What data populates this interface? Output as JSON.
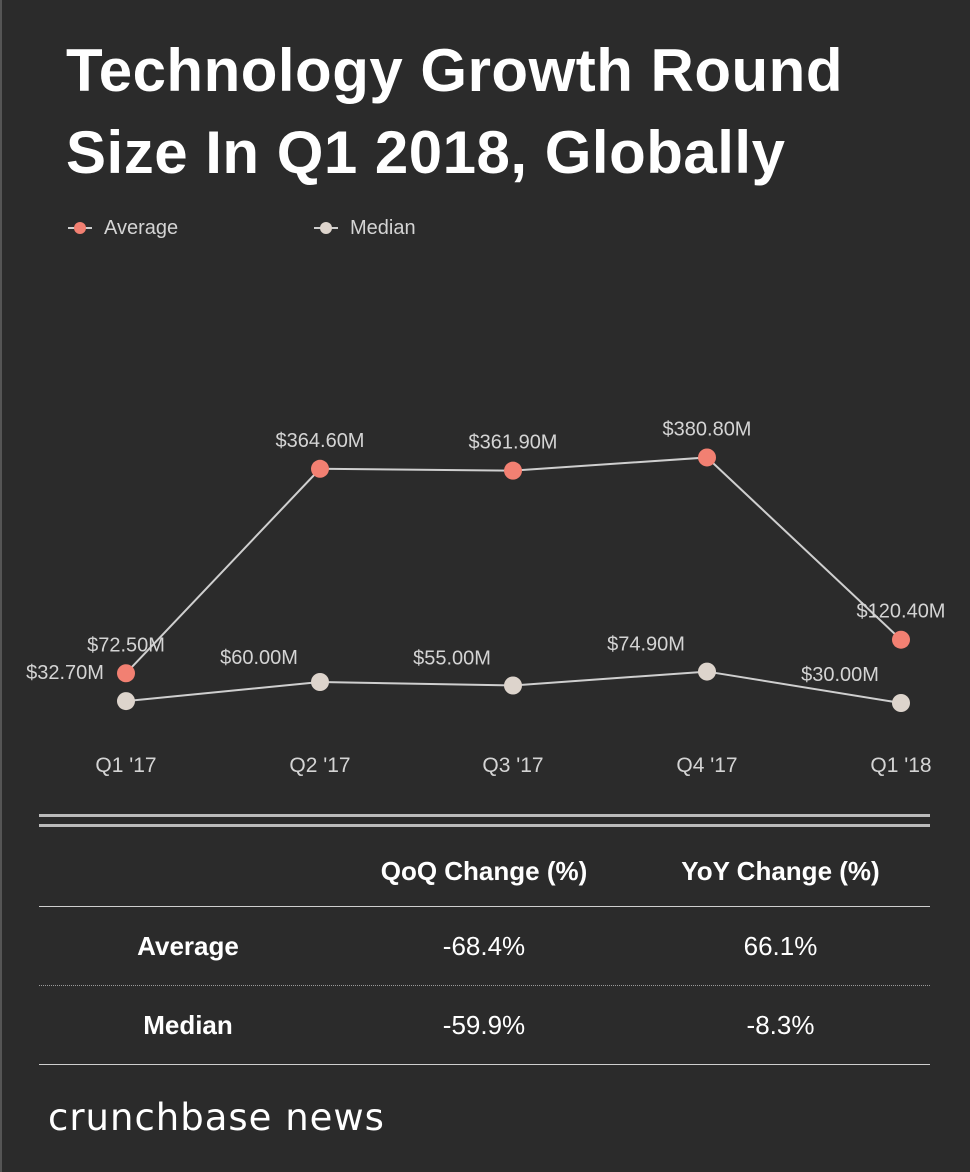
{
  "title": "Technology Growth Round Size In Q1 2018, Globally",
  "colors": {
    "background": "#2b2b2b",
    "average": "#f28072",
    "median": "#ddd4cc",
    "line": "#cfcfcf",
    "text": "#ffffff",
    "label": "#d4d4d4"
  },
  "chart_data": {
    "type": "line",
    "title": "Technology Growth Round Size In Q1 2018, Globally",
    "categories": [
      "Q1 '17",
      "Q2 '17",
      "Q3 '17",
      "Q4 '17",
      "Q1 '18"
    ],
    "series": [
      {
        "name": "Average",
        "values": [
          72.5,
          364.6,
          361.9,
          380.8,
          120.4
        ],
        "labels": [
          "$72.50M",
          "$364.60M",
          "$361.90M",
          "$380.80M",
          "$120.40M"
        ]
      },
      {
        "name": "Median",
        "values": [
          32.7,
          60.0,
          55.0,
          74.9,
          30.0
        ],
        "labels": [
          "$32.70M",
          "$60.00M",
          "$55.00M",
          "$74.90M",
          "$30.00M"
        ]
      }
    ],
    "xlabel": "",
    "ylabel": "",
    "ylim": [
      0,
      400
    ],
    "grid": false,
    "legend": "top-left"
  },
  "table": {
    "headers": [
      "",
      "QoQ Change (%)",
      "YoY Change (%)"
    ],
    "rows": [
      {
        "label": "Average",
        "qoq": "-68.4%",
        "yoy": "66.1%"
      },
      {
        "label": "Median",
        "qoq": "-59.9%",
        "yoy": "-8.3%"
      }
    ]
  },
  "brand": "crunchbase news"
}
